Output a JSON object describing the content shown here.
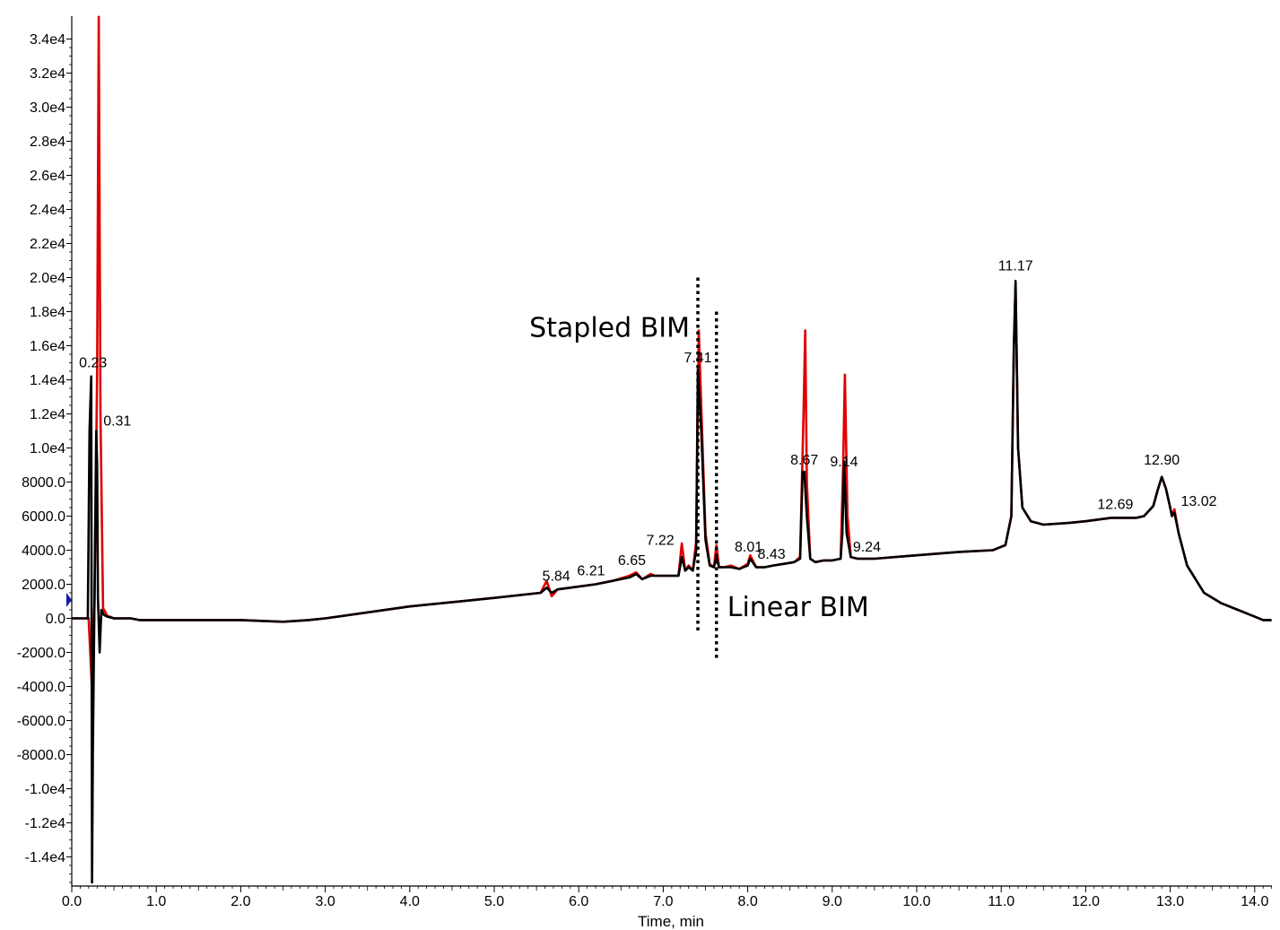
{
  "chart_data": {
    "type": "line",
    "title": "",
    "xlabel": "Time, min",
    "ylabel": "",
    "xlim": [
      0.0,
      14.2
    ],
    "ylim": [
      -15500,
      35500
    ],
    "grid": false,
    "x_ticks": [
      {
        "value": 0,
        "label": "0.0"
      },
      {
        "value": 1,
        "label": "1.0"
      },
      {
        "value": 2,
        "label": "2.0"
      },
      {
        "value": 3,
        "label": "3.0"
      },
      {
        "value": 4,
        "label": "4.0"
      },
      {
        "value": 5,
        "label": "5.0"
      },
      {
        "value": 6,
        "label": "6.0"
      },
      {
        "value": 7,
        "label": "7.0"
      },
      {
        "value": 8,
        "label": "8.0"
      },
      {
        "value": 9,
        "label": "9.0"
      },
      {
        "value": 10,
        "label": "10.0"
      },
      {
        "value": 11,
        "label": "11.0"
      },
      {
        "value": 12,
        "label": "12.0"
      },
      {
        "value": 13,
        "label": "13.0"
      },
      {
        "value": 14,
        "label": "14.0"
      }
    ],
    "y_ticks": [
      {
        "value": 34000,
        "label": "3.4e4"
      },
      {
        "value": 32000,
        "label": "3.2e4"
      },
      {
        "value": 30000,
        "label": "3.0e4"
      },
      {
        "value": 28000,
        "label": "2.8e4"
      },
      {
        "value": 26000,
        "label": "2.6e4"
      },
      {
        "value": 24000,
        "label": "2.4e4"
      },
      {
        "value": 22000,
        "label": "2.2e4"
      },
      {
        "value": 20000,
        "label": "2.0e4"
      },
      {
        "value": 18000,
        "label": "1.8e4"
      },
      {
        "value": 16000,
        "label": "1.6e4"
      },
      {
        "value": 14000,
        "label": "1.4e4"
      },
      {
        "value": 12000,
        "label": "1.2e4"
      },
      {
        "value": 10000,
        "label": "1.0e4"
      },
      {
        "value": 8000,
        "label": "8000.0"
      },
      {
        "value": 6000,
        "label": "6000.0"
      },
      {
        "value": 4000,
        "label": "4000.0"
      },
      {
        "value": 2000,
        "label": "2000.0"
      },
      {
        "value": 0,
        "label": "0.0"
      },
      {
        "value": -2000,
        "label": "-2000.0"
      },
      {
        "value": -4000,
        "label": "-4000.0"
      },
      {
        "value": -6000,
        "label": "-6000.0"
      },
      {
        "value": -8000,
        "label": "-8000.0"
      },
      {
        "value": -10000,
        "label": "-1.0e4"
      },
      {
        "value": -12000,
        "label": "-1.2e4"
      },
      {
        "value": -14000,
        "label": "-1.4e4"
      }
    ],
    "series": [
      {
        "color": "#e00000",
        "x": [
          0.0,
          0.15,
          0.2,
          0.24,
          0.27,
          0.3,
          0.32,
          0.34,
          0.37,
          0.42,
          0.5,
          0.6,
          0.7,
          0.8,
          1.0,
          2.0,
          2.5,
          2.8,
          3.0,
          4.0,
          5.0,
          5.55,
          5.62,
          5.68,
          5.75,
          5.9,
          6.2,
          6.4,
          6.6,
          6.68,
          6.75,
          6.85,
          6.9,
          7.0,
          7.18,
          7.22,
          7.26,
          7.3,
          7.35,
          7.39,
          7.42,
          7.46,
          7.5,
          7.55,
          7.6,
          7.63,
          7.66,
          7.72,
          7.8,
          7.9,
          8.0,
          8.03,
          8.1,
          8.2,
          8.3,
          8.43,
          8.55,
          8.62,
          8.66,
          8.68,
          8.7,
          8.74,
          8.8,
          8.9,
          9.0,
          9.1,
          9.13,
          9.15,
          9.18,
          9.22,
          9.3,
          9.5,
          10.0,
          10.5,
          10.9,
          11.05,
          11.12,
          11.15,
          11.17,
          11.2,
          11.25,
          11.35,
          11.5,
          11.8,
          12.0,
          12.3,
          12.6,
          12.69,
          12.8,
          12.85,
          12.9,
          12.95,
          13.0,
          13.02,
          13.05,
          13.1,
          13.2,
          13.4,
          13.6,
          13.8,
          14.0,
          14.1,
          14.2
        ],
        "y": [
          0,
          0,
          0,
          -4200,
          1000,
          14500,
          35300,
          12000,
          600,
          150,
          0,
          0,
          0,
          -100,
          -100,
          -100,
          -200,
          -100,
          0,
          700,
          1200,
          1500,
          2200,
          1300,
          1700,
          1800,
          2000,
          2200,
          2500,
          2700,
          2300,
          2600,
          2500,
          2500,
          2500,
          4400,
          2800,
          3100,
          2800,
          4500,
          16900,
          11000,
          5000,
          3200,
          3000,
          4300,
          3000,
          3000,
          3100,
          2900,
          3200,
          3700,
          3000,
          3000,
          3100,
          3200,
          3300,
          3600,
          12000,
          16900,
          8000,
          3500,
          3300,
          3400,
          3400,
          3500,
          9000,
          14300,
          6000,
          3600,
          3500,
          3500,
          3700,
          3900,
          4000,
          4300,
          6000,
          16000,
          19500,
          10000,
          6500,
          5700,
          5500,
          5600,
          5700,
          5900,
          5900,
          6000,
          6600,
          7500,
          8300,
          7600,
          6500,
          6000,
          6400,
          5000,
          3100,
          1500,
          900,
          500,
          100,
          -100,
          -100
        ]
      },
      {
        "color": "#000000",
        "x": [
          0.0,
          0.15,
          0.19,
          0.21,
          0.23,
          0.24,
          0.25,
          0.27,
          0.29,
          0.3,
          0.31,
          0.33,
          0.35,
          0.38,
          0.42,
          0.5,
          0.6,
          0.7,
          0.8,
          1.0,
          2.0,
          2.5,
          2.8,
          3.0,
          4.0,
          5.0,
          5.55,
          5.62,
          5.68,
          5.75,
          5.9,
          6.2,
          6.4,
          6.6,
          6.68,
          6.75,
          6.85,
          6.9,
          7.0,
          7.18,
          7.22,
          7.26,
          7.3,
          7.35,
          7.39,
          7.41,
          7.45,
          7.5,
          7.55,
          7.6,
          7.63,
          7.66,
          7.72,
          7.8,
          7.9,
          8.0,
          8.03,
          8.1,
          8.2,
          8.3,
          8.43,
          8.55,
          8.62,
          8.65,
          8.67,
          8.7,
          8.74,
          8.8,
          8.9,
          9.0,
          9.1,
          9.12,
          9.14,
          9.17,
          9.22,
          9.3,
          9.5,
          10.0,
          10.5,
          10.9,
          11.05,
          11.12,
          11.15,
          11.17,
          11.2,
          11.25,
          11.35,
          11.5,
          11.8,
          12.0,
          12.3,
          12.6,
          12.69,
          12.8,
          12.85,
          12.9,
          12.95,
          13.0,
          13.02,
          13.05,
          13.1,
          13.2,
          13.4,
          13.6,
          13.8,
          14.0,
          14.1,
          14.2
        ],
        "y": [
          0,
          0,
          0,
          11000,
          14200,
          -15500,
          -8000,
          1500,
          11000,
          9000,
          1200,
          -2000,
          500,
          200,
          100,
          0,
          0,
          0,
          -100,
          -100,
          -100,
          -200,
          -100,
          0,
          700,
          1200,
          1500,
          1800,
          1500,
          1700,
          1800,
          2000,
          2200,
          2400,
          2600,
          2300,
          2500,
          2500,
          2500,
          2500,
          3600,
          2800,
          3000,
          2800,
          4000,
          14600,
          11000,
          4600,
          3100,
          3000,
          3600,
          3000,
          3000,
          3000,
          2900,
          3100,
          3500,
          3000,
          3000,
          3100,
          3200,
          3300,
          3500,
          8600,
          8600,
          6000,
          3500,
          3300,
          3400,
          3400,
          3500,
          5000,
          9200,
          5000,
          3600,
          3500,
          3500,
          3700,
          3900,
          4000,
          4300,
          6000,
          16000,
          19800,
          10000,
          6500,
          5700,
          5500,
          5600,
          5700,
          5900,
          5900,
          6000,
          6600,
          7500,
          8300,
          7600,
          6500,
          6000,
          6200,
          5000,
          3100,
          1500,
          900,
          500,
          100,
          -100,
          -100
        ]
      }
    ],
    "peak_labels": [
      {
        "text": "0.23",
        "x": 0.23,
        "y": 14200
      },
      {
        "text": "0.31",
        "x": 0.31,
        "y": 11000
      },
      {
        "text": "5.84",
        "x": 5.84,
        "y": 1900
      },
      {
        "text": "6.21",
        "x": 6.21,
        "y": 2100
      },
      {
        "text": "6.65",
        "x": 6.65,
        "y": 2700
      },
      {
        "text": "7.22",
        "x": 7.22,
        "y": 4000
      },
      {
        "text": "7.41",
        "x": 7.41,
        "y": 14600
      },
      {
        "text": "8.01",
        "x": 8.01,
        "y": 3600
      },
      {
        "text": "8.43",
        "x": 8.43,
        "y": 3300
      },
      {
        "text": "8.67",
        "x": 8.67,
        "y": 8600
      },
      {
        "text": "9.14",
        "x": 9.14,
        "y": 8600
      },
      {
        "text": "9.24",
        "x": 9.24,
        "y": 3600
      },
      {
        "text": "11.17",
        "x": 11.17,
        "y": 19800
      },
      {
        "text": "12.69",
        "x": 12.69,
        "y": 5900
      },
      {
        "text": "12.90",
        "x": 12.9,
        "y": 8300
      },
      {
        "text": "13.02",
        "x": 13.02,
        "y": 6300
      }
    ],
    "annotations": [
      {
        "text": "Stapled BIM",
        "marker_x": 7.41,
        "marker_y_range": [
          -800,
          20000
        ]
      },
      {
        "text": "Linear BIM",
        "marker_x": 7.63,
        "marker_y_range": [
          -2500,
          18000
        ]
      }
    ]
  }
}
